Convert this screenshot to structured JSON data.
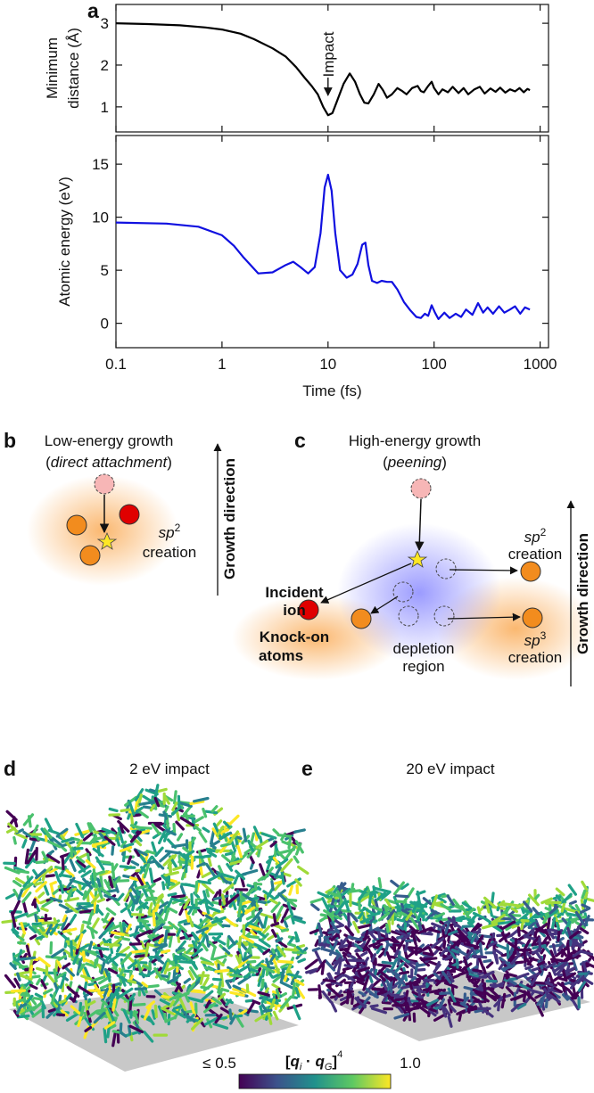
{
  "chart_data": [
    {
      "type": "line",
      "xscale": "log",
      "xlim": [
        0.1,
        1200
      ],
      "ylim": [
        0.4,
        3.45
      ],
      "xticks": [
        0.1,
        1,
        10,
        100,
        1000
      ],
      "yticks": [
        1,
        2,
        3
      ],
      "show_xtick_labels": false,
      "ylabel": [
        "Minimum",
        "distance (Å)"
      ],
      "color": "#000000",
      "annotation": {
        "text": "Impact",
        "x": 10
      },
      "x": [
        0.1,
        0.2,
        0.4,
        0.7,
        1,
        1.5,
        2,
        3,
        4,
        5,
        6,
        7,
        8,
        9,
        10,
        11,
        12,
        14,
        16,
        18,
        20,
        22,
        24,
        27,
        30,
        33,
        36,
        40,
        45,
        50,
        55,
        62,
        70,
        75,
        80,
        88,
        95,
        100,
        110,
        120,
        135,
        150,
        170,
        190,
        210,
        240,
        270,
        300,
        340,
        380,
        420,
        470,
        520,
        580,
        640,
        700,
        760,
        800
      ],
      "values": [
        3.0,
        2.98,
        2.95,
        2.9,
        2.85,
        2.75,
        2.62,
        2.4,
        2.2,
        1.95,
        1.7,
        1.5,
        1.3,
        1.0,
        0.8,
        0.85,
        1.1,
        1.55,
        1.8,
        1.6,
        1.3,
        1.1,
        1.08,
        1.3,
        1.55,
        1.4,
        1.22,
        1.3,
        1.45,
        1.38,
        1.3,
        1.45,
        1.5,
        1.38,
        1.35,
        1.5,
        1.6,
        1.45,
        1.3,
        1.42,
        1.35,
        1.48,
        1.33,
        1.45,
        1.3,
        1.42,
        1.48,
        1.32,
        1.44,
        1.36,
        1.46,
        1.34,
        1.42,
        1.37,
        1.45,
        1.35,
        1.43,
        1.4
      ]
    },
    {
      "type": "line",
      "xscale": "log",
      "xlim": [
        0.1,
        1200
      ],
      "ylim": [
        -2.3,
        17.7
      ],
      "xticks": [
        0.1,
        1,
        10,
        100,
        1000
      ],
      "yticks": [
        0,
        5,
        10,
        15
      ],
      "show_xtick_labels": true,
      "ylabel": [
        "Atomic energy (eV)"
      ],
      "xlabel": "Time (fs)",
      "color": "#1010e0",
      "x": [
        0.1,
        0.3,
        0.6,
        1,
        1.3,
        1.6,
        2.2,
        3,
        4,
        4.7,
        5.5,
        6.5,
        7.5,
        8.5,
        9.3,
        10,
        10.8,
        11.7,
        13,
        15,
        17,
        19,
        21,
        22.5,
        24,
        26,
        29,
        32,
        36,
        40,
        45,
        52,
        60,
        68,
        75,
        82,
        88,
        95,
        102,
        110,
        125,
        140,
        160,
        180,
        200,
        230,
        260,
        290,
        320,
        360,
        410,
        460,
        520,
        580,
        650,
        720,
        800
      ],
      "values": [
        9.5,
        9.4,
        9.1,
        8.3,
        7.3,
        6.2,
        4.7,
        4.8,
        5.5,
        5.8,
        5.3,
        4.7,
        5.3,
        8.5,
        12.8,
        14.0,
        12.5,
        8.5,
        5.0,
        4.3,
        4.6,
        5.6,
        7.4,
        7.6,
        5.5,
        4.0,
        3.8,
        4.0,
        3.9,
        3.9,
        3.2,
        2.0,
        1.2,
        0.6,
        0.5,
        0.9,
        0.7,
        1.7,
        1.0,
        0.4,
        1.0,
        0.5,
        0.9,
        0.6,
        1.3,
        0.8,
        1.9,
        1.0,
        1.5,
        0.9,
        1.6,
        1.0,
        1.3,
        1.6,
        0.9,
        1.5,
        1.3
      ]
    }
  ],
  "panels": {
    "a": {
      "label": "a"
    },
    "b": {
      "label": "b",
      "title": "Low-energy growth",
      "subtitle": {
        "open": "(",
        "text": "direct attachment",
        "close": ")"
      },
      "sp2": {
        "base": "sp",
        "sup": "2",
        "line2": "creation"
      },
      "growth": "Growth direction"
    },
    "c": {
      "label": "c",
      "title": "High-energy growth",
      "subtitle": {
        "open": "(",
        "text": "peening",
        "close": ")"
      },
      "incident": [
        "Incident",
        "ion"
      ],
      "sp2": {
        "base": "sp",
        "sup": "2",
        "line2": "creation"
      },
      "knock": [
        "Knock-on",
        "atoms"
      ],
      "depletion": [
        "depletion",
        "region"
      ],
      "sp3": {
        "base": "sp",
        "sup": "3",
        "line2": "creation"
      },
      "growth": "Growth direction"
    },
    "d": {
      "label": "d",
      "title": "2 eV impact"
    },
    "e": {
      "label": "e",
      "title": "20 eV impact"
    }
  },
  "colorbar": {
    "min_label": "≤ 0.5",
    "max_label": "1.0",
    "label": [
      {
        "text": "[",
        "style": "bold"
      },
      {
        "text": "q",
        "style": "bold-italic"
      },
      {
        "text": "i",
        "style": "sub"
      },
      {
        "text": " · ",
        "style": "bold"
      },
      {
        "text": "q",
        "style": "bold-italic"
      },
      {
        "text": "G",
        "style": "sub"
      },
      {
        "text": "]",
        "style": "bold"
      },
      {
        "text": "4",
        "style": "sup"
      }
    ]
  }
}
